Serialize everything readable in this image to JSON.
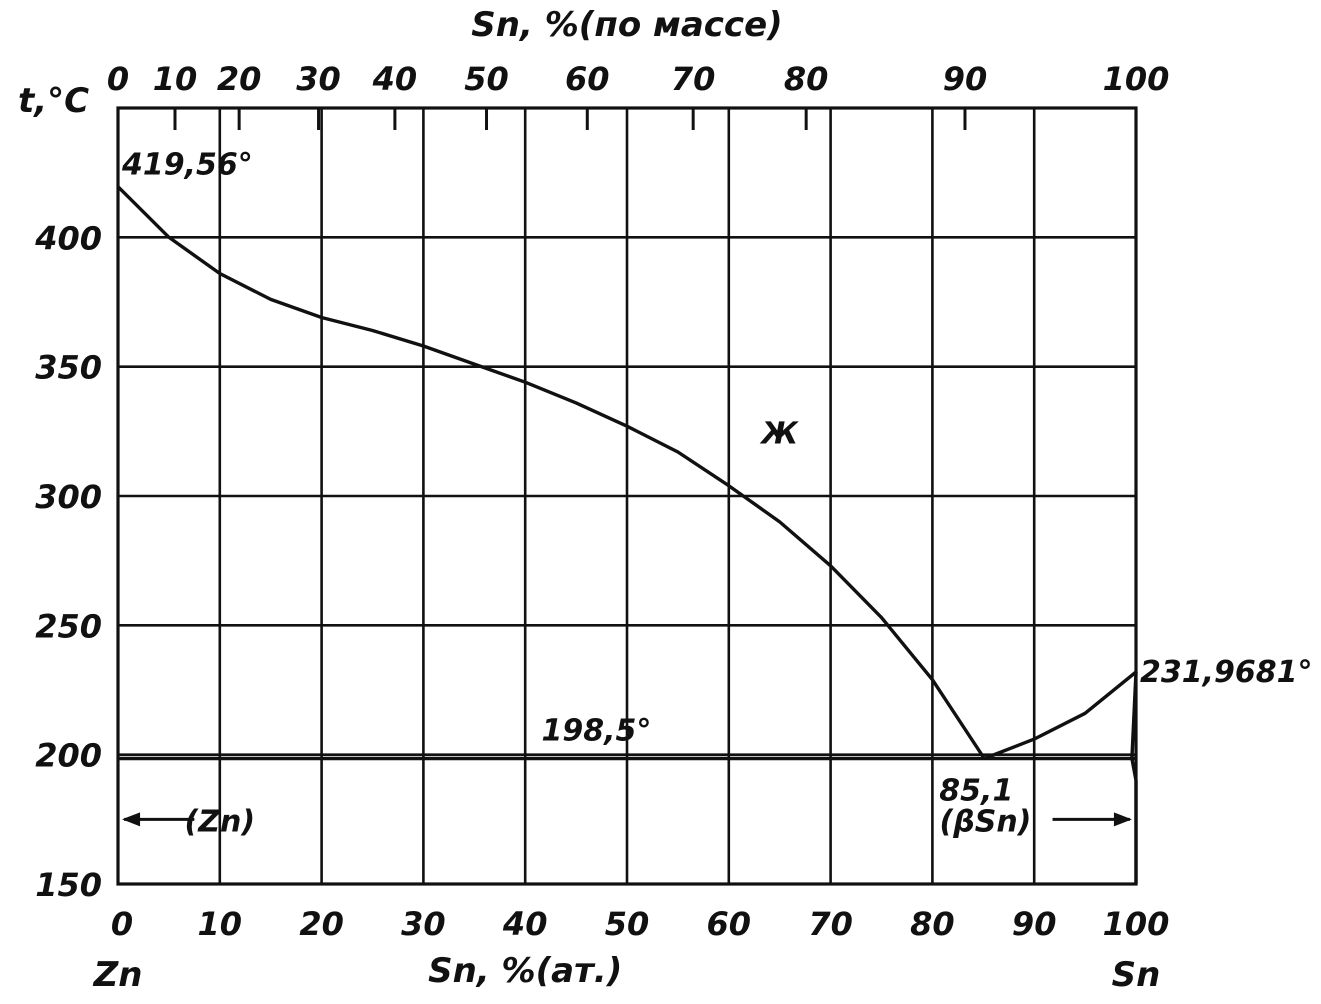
{
  "chart_data": {
    "type": "line",
    "title": "",
    "top_axis": {
      "label": "Sn, %(по массе)",
      "ticks": [
        0,
        10,
        20,
        30,
        40,
        50,
        60,
        70,
        80,
        90,
        100
      ],
      "tick_labels": [
        "0",
        "10",
        "20",
        "30",
        "40",
        "50",
        "60",
        "70",
        "80",
        "90",
        "100"
      ],
      "tick_positions_at": [
        0,
        5.6,
        11.9,
        19.7,
        27.2,
        36.2,
        46.1,
        56.5,
        67.6,
        83.2,
        100
      ]
    },
    "bottom_axis": {
      "label": "Sn, %(ат.)",
      "ticks": [
        0,
        10,
        20,
        30,
        40,
        50,
        60,
        70,
        80,
        90,
        100
      ],
      "tick_labels": [
        "0",
        "10",
        "20",
        "30",
        "40",
        "50",
        "60",
        "70",
        "80",
        "90",
        "100"
      ],
      "xlim": [
        0,
        100
      ],
      "left_end_label": "Zn",
      "right_end_label": "Sn"
    },
    "y_axis": {
      "label": "t,°C",
      "ticks": [
        150,
        200,
        250,
        300,
        350,
        400
      ],
      "tick_labels": [
        "150",
        "200",
        "250",
        "300",
        "350",
        "400"
      ],
      "ylim": [
        150,
        450
      ]
    },
    "grid": true,
    "series": [
      {
        "x": [
          0,
          5,
          10,
          15,
          20,
          25,
          30,
          35,
          40,
          45,
          50,
          55,
          60,
          65,
          70,
          75,
          80,
          85.1
        ],
        "y": [
          419.56,
          400,
          386,
          376,
          369,
          364,
          358,
          351,
          344,
          336,
          327,
          317,
          304,
          290,
          273,
          253,
          229,
          198.5
        ]
      },
      {
        "x": [
          85.1,
          90,
          95,
          100
        ],
        "y": [
          198.5,
          206,
          216,
          231.9681
        ]
      },
      {
        "x": [
          0,
          85.1,
          100
        ],
        "y": [
          198.5,
          198.5,
          198.5
        ]
      },
      {
        "x": [
          100,
          99.6,
          100,
          100
        ],
        "y": [
          231.9681,
          198.5,
          190,
          150
        ]
      }
    ],
    "annotations": [
      {
        "text": "419,56°",
        "x": 0,
        "y": 419.56
      },
      {
        "text": "231,9681°",
        "x": 100,
        "y": 231.9681
      },
      {
        "text": "198,5°",
        "x": 47,
        "y": 198.5
      },
      {
        "text": "85,1",
        "x": 85.1,
        "y": 198.5
      },
      {
        "text": "(βSn)",
        "x": 86,
        "y": 175
      },
      {
        "text": "(Zn)",
        "x": 10,
        "y": 175
      },
      {
        "text": "Ж",
        "x": 65,
        "y": 325
      }
    ]
  }
}
